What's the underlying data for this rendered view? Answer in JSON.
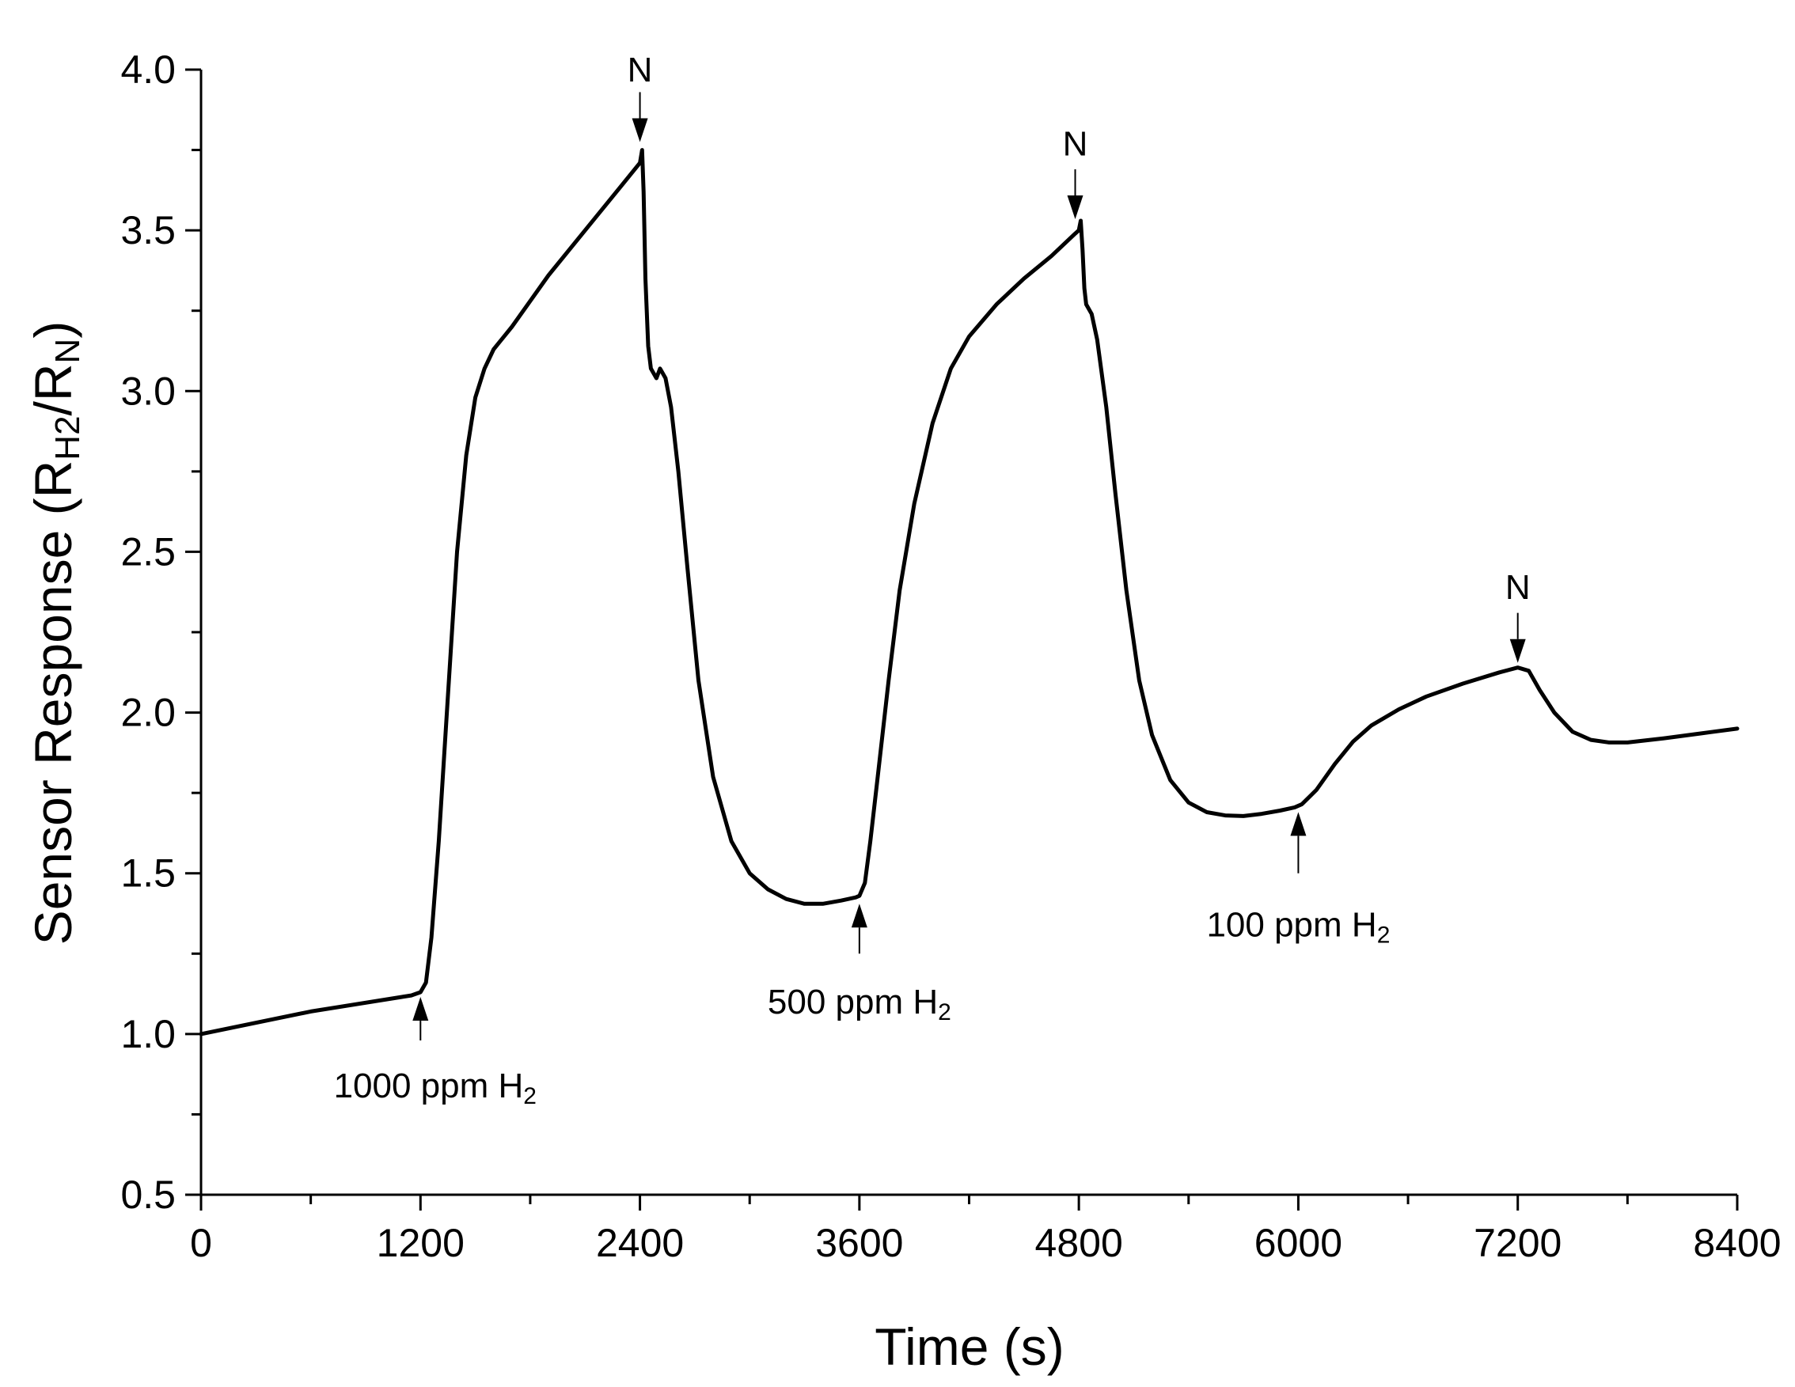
{
  "chart_data": {
    "type": "line",
    "title": "",
    "xlabel": "Time (s)",
    "ylabel": "Sensor Response (R",
    "ylabel_sub1": "H2",
    "ylabel_mid": "/R",
    "ylabel_sub2": "N",
    "ylabel_end": ")",
    "xlim": [
      0,
      8400
    ],
    "ylim": [
      0.5,
      4.0
    ],
    "xticks": [
      0,
      1200,
      2400,
      3600,
      4800,
      6000,
      7200,
      8400
    ],
    "xtick_labels": [
      "0",
      "1200",
      "2400",
      "3600",
      "4800",
      "6000",
      "7200",
      "8400"
    ],
    "yticks": [
      0.5,
      1.0,
      1.5,
      2.0,
      2.5,
      3.0,
      3.5,
      4.0
    ],
    "ytick_labels": [
      "0.5",
      "1.0",
      "1.5",
      "2.0",
      "2.5",
      "3.0",
      "3.5",
      "4.0"
    ],
    "grid": false,
    "series": [
      {
        "color": "#000000",
        "points": [
          [
            0,
            1.0
          ],
          [
            600,
            1.07
          ],
          [
            1150,
            1.12
          ],
          [
            1200,
            1.13
          ],
          [
            1230,
            1.16
          ],
          [
            1260,
            1.3
          ],
          [
            1300,
            1.6
          ],
          [
            1350,
            2.05
          ],
          [
            1400,
            2.5
          ],
          [
            1450,
            2.8
          ],
          [
            1500,
            2.98
          ],
          [
            1550,
            3.07
          ],
          [
            1600,
            3.13
          ],
          [
            1700,
            3.2
          ],
          [
            1900,
            3.36
          ],
          [
            2100,
            3.5
          ],
          [
            2300,
            3.64
          ],
          [
            2400,
            3.71
          ],
          [
            2412,
            3.75
          ],
          [
            2420,
            3.62
          ],
          [
            2430,
            3.35
          ],
          [
            2445,
            3.14
          ],
          [
            2460,
            3.07
          ],
          [
            2490,
            3.04
          ],
          [
            2510,
            3.07
          ],
          [
            2540,
            3.04
          ],
          [
            2570,
            2.95
          ],
          [
            2610,
            2.75
          ],
          [
            2660,
            2.45
          ],
          [
            2720,
            2.1
          ],
          [
            2800,
            1.8
          ],
          [
            2900,
            1.6
          ],
          [
            3000,
            1.5
          ],
          [
            3100,
            1.45
          ],
          [
            3200,
            1.42
          ],
          [
            3300,
            1.405
          ],
          [
            3400,
            1.405
          ],
          [
            3500,
            1.415
          ],
          [
            3580,
            1.425
          ],
          [
            3600,
            1.43
          ],
          [
            3630,
            1.47
          ],
          [
            3660,
            1.6
          ],
          [
            3700,
            1.8
          ],
          [
            3760,
            2.1
          ],
          [
            3820,
            2.38
          ],
          [
            3900,
            2.65
          ],
          [
            4000,
            2.9
          ],
          [
            4100,
            3.07
          ],
          [
            4200,
            3.17
          ],
          [
            4350,
            3.27
          ],
          [
            4500,
            3.35
          ],
          [
            4650,
            3.42
          ],
          [
            4780,
            3.49
          ],
          [
            4800,
            3.5
          ],
          [
            4810,
            3.53
          ],
          [
            4820,
            3.44
          ],
          [
            4830,
            3.32
          ],
          [
            4840,
            3.27
          ],
          [
            4870,
            3.24
          ],
          [
            4900,
            3.16
          ],
          [
            4950,
            2.95
          ],
          [
            5000,
            2.68
          ],
          [
            5060,
            2.38
          ],
          [
            5130,
            2.1
          ],
          [
            5200,
            1.93
          ],
          [
            5300,
            1.79
          ],
          [
            5400,
            1.72
          ],
          [
            5500,
            1.69
          ],
          [
            5600,
            1.68
          ],
          [
            5700,
            1.678
          ],
          [
            5800,
            1.685
          ],
          [
            5900,
            1.695
          ],
          [
            5980,
            1.705
          ],
          [
            6020,
            1.715
          ],
          [
            6100,
            1.76
          ],
          [
            6200,
            1.84
          ],
          [
            6300,
            1.91
          ],
          [
            6400,
            1.96
          ],
          [
            6550,
            2.01
          ],
          [
            6700,
            2.05
          ],
          [
            6900,
            2.09
          ],
          [
            7100,
            2.125
          ],
          [
            7200,
            2.14
          ],
          [
            7260,
            2.13
          ],
          [
            7320,
            2.07
          ],
          [
            7400,
            2.0
          ],
          [
            7500,
            1.94
          ],
          [
            7600,
            1.915
          ],
          [
            7700,
            1.907
          ],
          [
            7800,
            1.907
          ],
          [
            8000,
            1.92
          ],
          [
            8200,
            1.935
          ],
          [
            8400,
            1.95
          ]
        ]
      }
    ],
    "annotations": [
      {
        "id": "h2-1000",
        "label": "1000 ppm H",
        "sub": "2",
        "x": 1200,
        "direction": "up",
        "target_y": 1.13,
        "tail_y": 0.98,
        "text_x": 1280,
        "text_y": 0.84
      },
      {
        "id": "h2-500",
        "label": "500 ppm H",
        "sub": "2",
        "x": 3600,
        "direction": "up",
        "target_y": 1.42,
        "tail_y": 1.25,
        "text_x": 3600,
        "text_y": 1.1
      },
      {
        "id": "h2-100",
        "label": "100 ppm H",
        "sub": "2",
        "x": 6000,
        "direction": "up",
        "target_y": 1.705,
        "tail_y": 1.5,
        "text_x": 6000,
        "text_y": 1.34
      },
      {
        "id": "n-1",
        "label": "N",
        "sub": "",
        "x": 2400,
        "direction": "down",
        "target_y": 3.76,
        "tail_y": 3.93,
        "text_x": 2400,
        "text_y": 4.0
      },
      {
        "id": "n-2",
        "label": "N",
        "sub": "",
        "x": 4780,
        "direction": "down",
        "target_y": 3.52,
        "tail_y": 3.69,
        "text_x": 4780,
        "text_y": 3.77
      },
      {
        "id": "n-3",
        "label": "N",
        "sub": "",
        "x": 7200,
        "direction": "down",
        "target_y": 2.14,
        "tail_y": 2.31,
        "text_x": 7200,
        "text_y": 2.39
      }
    ]
  }
}
